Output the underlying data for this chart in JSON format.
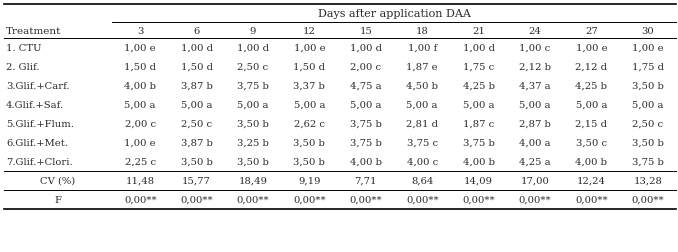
{
  "title": "Days after application DAA",
  "col_header": [
    "3",
    "6",
    "9",
    "12",
    "15",
    "18",
    "21",
    "24",
    "27",
    "30"
  ],
  "row_labels": [
    "1. CTU",
    "2. Glif.",
    "3.Glif.+Carf.",
    "4.Glif.+Saf.",
    "5.Glif.+Flum.",
    "6.Glif.+Met.",
    "7.Glif.+Clori.",
    "CV (%)",
    "F"
  ],
  "data": [
    [
      "1,00 e",
      "1,00 d",
      "1,00 d",
      "1,00 e",
      "1,00 d",
      "1,00 f",
      "1,00 d",
      "1,00 c",
      "1,00 e",
      "1,00 e"
    ],
    [
      "1,50 d",
      "1,50 d",
      "2,50 c",
      "1,50 d",
      "2,00 c",
      "1,87 e",
      "1,75 c",
      "2,12 b",
      "2,12 d",
      "1,75 d"
    ],
    [
      "4,00 b",
      "3,87 b",
      "3,75 b",
      "3,37 b",
      "4,75 a",
      "4,50 b",
      "4,25 b",
      "4,37 a",
      "4,25 b",
      "3,50 b"
    ],
    [
      "5,00 a",
      "5,00 a",
      "5,00 a",
      "5,00 a",
      "5,00 a",
      "5,00 a",
      "5,00 a",
      "5,00 a",
      "5,00 a",
      "5,00 a"
    ],
    [
      "2,00 c",
      "2,50 c",
      "3,50 b",
      "2,62 c",
      "3,75 b",
      "2,81 d",
      "1,87 c",
      "2,87 b",
      "2,15 d",
      "2,50 c"
    ],
    [
      "1,00 e",
      "3,87 b",
      "3,25 b",
      "3,50 b",
      "3,75 b",
      "3,75 c",
      "3,75 b",
      "4,00 a",
      "3,50 c",
      "3,50 b"
    ],
    [
      "2,25 c",
      "3,50 b",
      "3,50 b",
      "3,50 b",
      "4,00 b",
      "4,00 c",
      "4,00 b",
      "4,25 a",
      "4,00 b",
      "3,75 b"
    ],
    [
      "11,48",
      "15,77",
      "18,49",
      "9,19",
      "7,71",
      "8,64",
      "14,09",
      "17,00",
      "12,24",
      "13,28"
    ],
    [
      "0,00**",
      "0,00**",
      "0,00**",
      "0,00**",
      "0,00**",
      "0,00**",
      "0,00**",
      "0,00**",
      "0,00**",
      "0,00**"
    ]
  ],
  "bg_color": "#ffffff",
  "text_color": "#2b2b2b",
  "font_size": 7.2,
  "title_fontsize": 8.0,
  "treat_fontsize": 7.5
}
